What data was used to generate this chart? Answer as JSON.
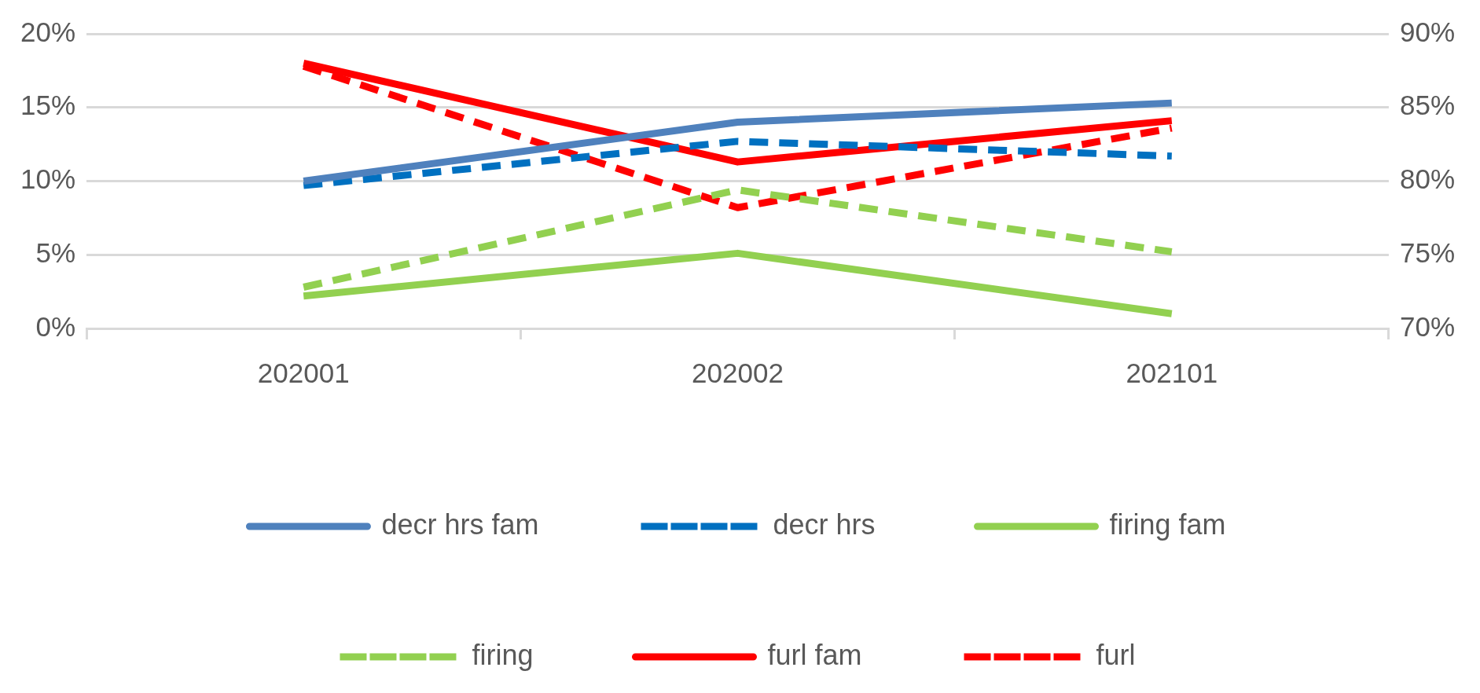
{
  "chart_data": {
    "type": "line",
    "categories": [
      "202001",
      "202002",
      "202101"
    ],
    "series": [
      {
        "name": "decr hrs fam",
        "color": "#4f81bd",
        "values": [
          10.0,
          14.0,
          15.3
        ],
        "line_style": "solid"
      },
      {
        "name": "decr hrs",
        "color": "#0070c0",
        "values": [
          9.7,
          12.7,
          11.7
        ],
        "line_style": "dashed"
      },
      {
        "name": "firing fam",
        "color": "#92d050",
        "values": [
          2.2,
          5.1,
          1.0
        ],
        "line_style": "solid"
      },
      {
        "name": "firing",
        "color": "#92d050",
        "values": [
          2.8,
          9.4,
          5.2
        ],
        "line_style": "dashed"
      },
      {
        "name": "furl fam",
        "color": "#ff0000",
        "values": [
          88.0,
          81.3,
          84.1
        ],
        "line_style": "solid",
        "axis": "y2"
      },
      {
        "name": "furl",
        "color": "#ff0000",
        "values": [
          87.8,
          78.2,
          83.6
        ],
        "line_style": "dashed",
        "axis": "y2"
      }
    ],
    "ylim": [
      0,
      20
    ],
    "yticks": [
      {
        "value": 0,
        "label": "0%"
      },
      {
        "value": 5,
        "label": "5%"
      },
      {
        "value": 10,
        "label": "10%"
      },
      {
        "value": 15,
        "label": "15%"
      },
      {
        "value": 20,
        "label": "20%"
      }
    ],
    "y2lim": [
      70,
      90
    ],
    "y2ticks": [
      {
        "value": 70,
        "label": "70%"
      },
      {
        "value": 75,
        "label": "75%"
      },
      {
        "value": 80,
        "label": "80%"
      },
      {
        "value": 85,
        "label": "85%"
      },
      {
        "value": 90,
        "label": "90%"
      }
    ],
    "grid": "y",
    "legend": "bottom",
    "marker": "none"
  }
}
